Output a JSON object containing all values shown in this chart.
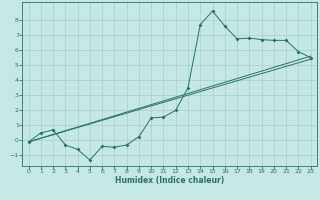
{
  "xlabel": "Humidex (Indice chaleur)",
  "background_color": "#c5e8e5",
  "grid_color": "#a8d4d0",
  "line_color": "#2a7068",
  "xlim": [
    -0.5,
    23.5
  ],
  "ylim": [
    -1.7,
    9.2
  ],
  "xticks": [
    0,
    1,
    2,
    3,
    4,
    5,
    6,
    7,
    8,
    9,
    10,
    11,
    12,
    13,
    14,
    15,
    16,
    17,
    18,
    19,
    20,
    21,
    22,
    23
  ],
  "yticks": [
    -1,
    0,
    1,
    2,
    3,
    4,
    5,
    6,
    7,
    8
  ],
  "line1_x": [
    0,
    1,
    2,
    3,
    4,
    5,
    6,
    7,
    8,
    9,
    10,
    11,
    12,
    13,
    14,
    15,
    16,
    17,
    18,
    19,
    20,
    21,
    22,
    23
  ],
  "line1_y": [
    -0.1,
    0.5,
    0.7,
    -0.3,
    -0.6,
    -1.3,
    -0.4,
    -0.45,
    -0.3,
    0.25,
    1.5,
    1.55,
    2.0,
    3.5,
    7.7,
    8.6,
    7.6,
    6.75,
    6.8,
    6.7,
    6.65,
    6.65,
    5.9,
    5.5
  ],
  "line2_x": [
    0,
    23
  ],
  "line2_y": [
    -0.1,
    5.6
  ],
  "line3_x": [
    0,
    23
  ],
  "line3_y": [
    -0.1,
    5.4
  ]
}
